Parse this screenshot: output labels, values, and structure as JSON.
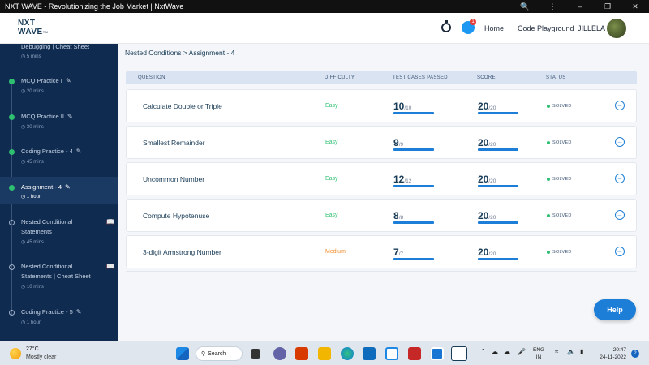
{
  "window": {
    "title": "NXT WAVE - Revolutionizing the Job Market | NxtWave"
  },
  "header": {
    "logo_line1": "NXT",
    "logo_line2": "WAVE",
    "logo_suffix": "TM",
    "notification_count": "1",
    "nav": [
      "Home",
      "Code Playground"
    ],
    "user_name": "JILLELA"
  },
  "sidebar": {
    "items": [
      {
        "title": "Debugging | Cheat Sheet",
        "duration": "5 mins",
        "status": "done",
        "editable": false,
        "book": false
      },
      {
        "title": "MCQ Practice I",
        "duration": "20 mins",
        "status": "done",
        "editable": true,
        "book": false
      },
      {
        "title": "MCQ Practice II",
        "duration": "30 mins",
        "status": "done",
        "editable": true,
        "book": false
      },
      {
        "title": "Coding Practice - 4",
        "duration": "45 mins",
        "status": "done",
        "editable": true,
        "book": false
      },
      {
        "title": "Assignment - 4",
        "duration": "1 hour",
        "status": "done",
        "editable": true,
        "book": false,
        "active": true
      },
      {
        "title": "Nested Conditional Statements",
        "duration": "45 mins",
        "status": "todo",
        "editable": false,
        "book": true
      },
      {
        "title": "Nested Conditional Statements | Cheat Sheet",
        "duration": "10 mins",
        "status": "todo",
        "editable": false,
        "book": true
      },
      {
        "title": "Coding Practice - 5",
        "duration": "1 hour",
        "status": "todo",
        "editable": true,
        "book": false
      }
    ]
  },
  "breadcrumb": "Nested Conditions > Assignment - 4",
  "table": {
    "headers": [
      "QUESTION",
      "DIFFICULTY",
      "TEST CASES PASSED",
      "SCORE",
      "STATUS"
    ],
    "rows": [
      {
        "question": "Calculate Double or Triple",
        "difficulty": "Easy",
        "passed": "10",
        "passed_total": "/10",
        "score": "20",
        "score_total": "/20",
        "status": "SOLVED"
      },
      {
        "question": "Smallest Remainder",
        "difficulty": "Easy",
        "passed": "9",
        "passed_total": "/9",
        "score": "20",
        "score_total": "/20",
        "status": "SOLVED"
      },
      {
        "question": "Uncommon Number",
        "difficulty": "Easy",
        "passed": "12",
        "passed_total": "/12",
        "score": "20",
        "score_total": "/20",
        "status": "SOLVED"
      },
      {
        "question": "Compute Hypotenuse",
        "difficulty": "Easy",
        "passed": "8",
        "passed_total": "/8",
        "score": "20",
        "score_total": "/20",
        "status": "SOLVED"
      },
      {
        "question": "3-digit Armstrong Number",
        "difficulty": "Medium",
        "passed": "7",
        "passed_total": "/7",
        "score": "20",
        "score_total": "/20",
        "status": "SOLVED"
      }
    ]
  },
  "help_label": "Help",
  "colors": {
    "easy": "#2fbf71",
    "medium": "#f08c2a",
    "accent": "#1c7ed6",
    "sidebar_bg": "#0f2b50"
  },
  "taskbar": {
    "weather_temp": "27°C",
    "weather_desc": "Mostly clear",
    "search_label": "Search",
    "lang_1": "ENG",
    "lang_2": "IN",
    "time": "20:47",
    "date": "24-11-2022",
    "notification_count": "2",
    "apps": [
      "windows-icon",
      "search-icon",
      "task-view-icon",
      "teams-icon",
      "office-icon",
      "file-explorer-icon",
      "edge-icon",
      "store-icon",
      "learn-icon",
      "mcafee-icon",
      "app-icon",
      "nxtwave-icon"
    ]
  }
}
